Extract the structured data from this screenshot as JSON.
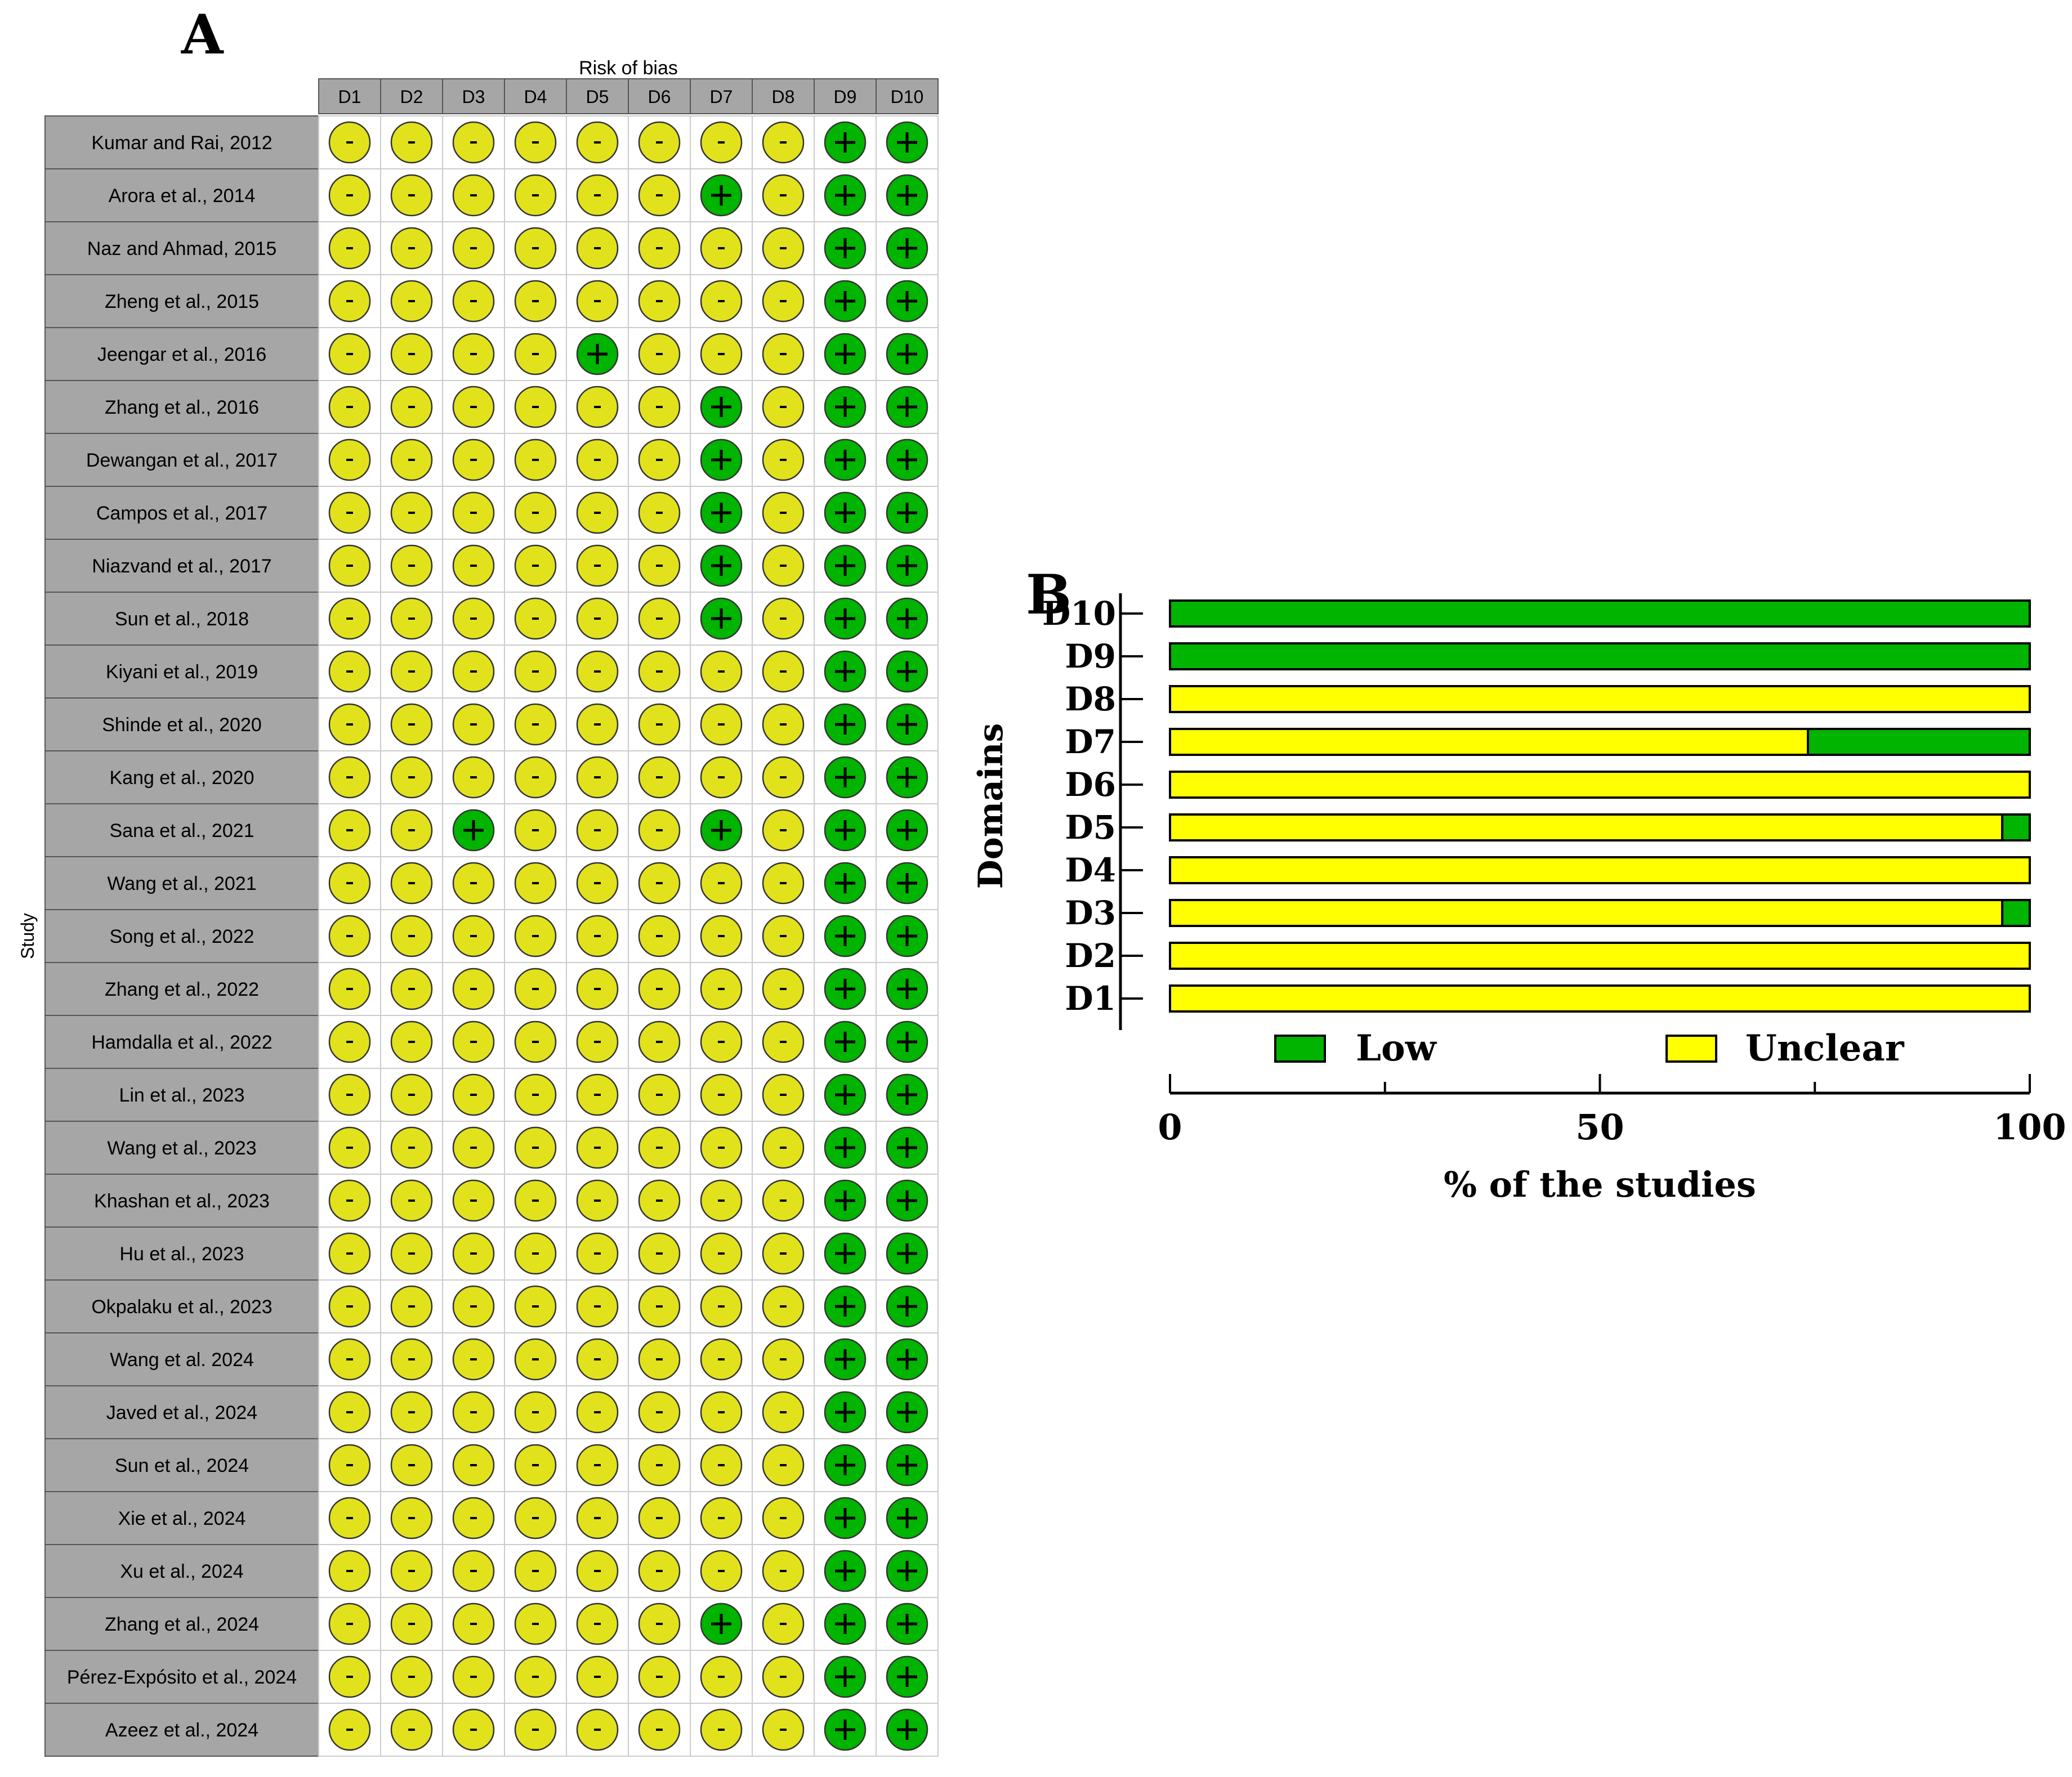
{
  "panel_a": {
    "letter": "A",
    "header": "Risk of bias",
    "y_axis_label": "Study"
  },
  "panel_b": {
    "letter": "B"
  },
  "colors": {
    "low": "#00b400",
    "unclear": "#e2e21c",
    "bar_unclear": "#ffff00",
    "label_fill": "#a6a6a6"
  },
  "symbols": {
    "low": "+",
    "unclear": "-"
  },
  "chart_data": [
    {
      "type": "table",
      "title": "Risk of bias",
      "row_axis_label": "Study",
      "columns": [
        "D1",
        "D2",
        "D3",
        "D4",
        "D5",
        "D6",
        "D7",
        "D8",
        "D9",
        "D10"
      ],
      "legend": {
        "+": "Low",
        "-": "Unclear"
      },
      "rows": [
        {
          "study": "Kumar and Rai, 2012",
          "judgements": [
            "-",
            "-",
            "-",
            "-",
            "-",
            "-",
            "-",
            "-",
            "+",
            "+"
          ]
        },
        {
          "study": "Arora et al., 2014",
          "judgements": [
            "-",
            "-",
            "-",
            "-",
            "-",
            "-",
            "+",
            "-",
            "+",
            "+"
          ]
        },
        {
          "study": "Naz and Ahmad, 2015",
          "judgements": [
            "-",
            "-",
            "-",
            "-",
            "-",
            "-",
            "-",
            "-",
            "+",
            "+"
          ]
        },
        {
          "study": "Zheng et al., 2015",
          "judgements": [
            "-",
            "-",
            "-",
            "-",
            "-",
            "-",
            "-",
            "-",
            "+",
            "+"
          ]
        },
        {
          "study": "Jeengar et al., 2016",
          "judgements": [
            "-",
            "-",
            "-",
            "-",
            "+",
            "-",
            "-",
            "-",
            "+",
            "+"
          ]
        },
        {
          "study": "Zhang et al., 2016",
          "judgements": [
            "-",
            "-",
            "-",
            "-",
            "-",
            "-",
            "+",
            "-",
            "+",
            "+"
          ]
        },
        {
          "study": "Dewangan et al., 2017",
          "judgements": [
            "-",
            "-",
            "-",
            "-",
            "-",
            "-",
            "+",
            "-",
            "+",
            "+"
          ]
        },
        {
          "study": "Campos et al., 2017",
          "judgements": [
            "-",
            "-",
            "-",
            "-",
            "-",
            "-",
            "+",
            "-",
            "+",
            "+"
          ]
        },
        {
          "study": "Niazvand et al., 2017",
          "judgements": [
            "-",
            "-",
            "-",
            "-",
            "-",
            "-",
            "+",
            "-",
            "+",
            "+"
          ]
        },
        {
          "study": "Sun et al., 2018",
          "judgements": [
            "-",
            "-",
            "-",
            "-",
            "-",
            "-",
            "+",
            "-",
            "+",
            "+"
          ]
        },
        {
          "study": "Kiyani et al., 2019",
          "judgements": [
            "-",
            "-",
            "-",
            "-",
            "-",
            "-",
            "-",
            "-",
            "+",
            "+"
          ]
        },
        {
          "study": "Shinde et al., 2020",
          "judgements": [
            "-",
            "-",
            "-",
            "-",
            "-",
            "-",
            "-",
            "-",
            "+",
            "+"
          ]
        },
        {
          "study": "Kang et al., 2020",
          "judgements": [
            "-",
            "-",
            "-",
            "-",
            "-",
            "-",
            "-",
            "-",
            "+",
            "+"
          ]
        },
        {
          "study": "Sana et al., 2021",
          "judgements": [
            "-",
            "-",
            "+",
            "-",
            "-",
            "-",
            "+",
            "-",
            "+",
            "+"
          ]
        },
        {
          "study": "Wang et al., 2021",
          "judgements": [
            "-",
            "-",
            "-",
            "-",
            "-",
            "-",
            "-",
            "-",
            "+",
            "+"
          ]
        },
        {
          "study": "Song et al., 2022",
          "judgements": [
            "-",
            "-",
            "-",
            "-",
            "-",
            "-",
            "-",
            "-",
            "+",
            "+"
          ]
        },
        {
          "study": "Zhang et al., 2022",
          "judgements": [
            "-",
            "-",
            "-",
            "-",
            "-",
            "-",
            "-",
            "-",
            "+",
            "+"
          ]
        },
        {
          "study": "Hamdalla et al., 2022",
          "judgements": [
            "-",
            "-",
            "-",
            "-",
            "-",
            "-",
            "-",
            "-",
            "+",
            "+"
          ]
        },
        {
          "study": "Lin et al., 2023",
          "judgements": [
            "-",
            "-",
            "-",
            "-",
            "-",
            "-",
            "-",
            "-",
            "+",
            "+"
          ]
        },
        {
          "study": "Wang et al., 2023",
          "judgements": [
            "-",
            "-",
            "-",
            "-",
            "-",
            "-",
            "-",
            "-",
            "+",
            "+"
          ]
        },
        {
          "study": "Khashan et al., 2023",
          "judgements": [
            "-",
            "-",
            "-",
            "-",
            "-",
            "-",
            "-",
            "-",
            "+",
            "+"
          ]
        },
        {
          "study": "Hu et al., 2023",
          "judgements": [
            "-",
            "-",
            "-",
            "-",
            "-",
            "-",
            "-",
            "-",
            "+",
            "+"
          ]
        },
        {
          "study": "Okpalaku et al., 2023",
          "judgements": [
            "-",
            "-",
            "-",
            "-",
            "-",
            "-",
            "-",
            "-",
            "+",
            "+"
          ]
        },
        {
          "study": "Wang et al. 2024",
          "judgements": [
            "-",
            "-",
            "-",
            "-",
            "-",
            "-",
            "-",
            "-",
            "+",
            "+"
          ]
        },
        {
          "study": "Javed et al., 2024",
          "judgements": [
            "-",
            "-",
            "-",
            "-",
            "-",
            "-",
            "-",
            "-",
            "+",
            "+"
          ]
        },
        {
          "study": "Sun et al., 2024",
          "judgements": [
            "-",
            "-",
            "-",
            "-",
            "-",
            "-",
            "-",
            "-",
            "+",
            "+"
          ]
        },
        {
          "study": "Xie et al., 2024",
          "judgements": [
            "-",
            "-",
            "-",
            "-",
            "-",
            "-",
            "-",
            "-",
            "+",
            "+"
          ]
        },
        {
          "study": "Xu et al., 2024",
          "judgements": [
            "-",
            "-",
            "-",
            "-",
            "-",
            "-",
            "-",
            "-",
            "+",
            "+"
          ]
        },
        {
          "study": "Zhang et al., 2024",
          "judgements": [
            "-",
            "-",
            "-",
            "-",
            "-",
            "-",
            "+",
            "-",
            "+",
            "+"
          ]
        },
        {
          "study": "Pérez-Expósito et al., 2024",
          "judgements": [
            "-",
            "-",
            "-",
            "-",
            "-",
            "-",
            "-",
            "-",
            "+",
            "+"
          ]
        },
        {
          "study": "Azeez et al., 2024",
          "judgements": [
            "-",
            "-",
            "-",
            "-",
            "-",
            "-",
            "-",
            "-",
            "+",
            "+"
          ]
        }
      ]
    },
    {
      "type": "bar",
      "orientation": "horizontal",
      "stacked": true,
      "title": "",
      "ylabel": "Domains",
      "xlabel": "% of the studies",
      "xlim": [
        0,
        100
      ],
      "xticks": [
        0,
        50,
        100
      ],
      "categories": [
        "D10",
        "D9",
        "D8",
        "D7",
        "D6",
        "D5",
        "D4",
        "D3",
        "D2",
        "D1"
      ],
      "series": [
        {
          "name": "Unclear",
          "values": [
            0,
            0,
            100,
            74.2,
            100,
            96.8,
            100,
            96.8,
            100,
            100
          ]
        },
        {
          "name": "Low",
          "values": [
            100,
            100,
            0,
            25.8,
            0,
            3.2,
            0,
            3.2,
            0,
            0
          ]
        }
      ],
      "legend": [
        "Low",
        "Unclear"
      ],
      "legend_position": "bottom-inside"
    }
  ]
}
